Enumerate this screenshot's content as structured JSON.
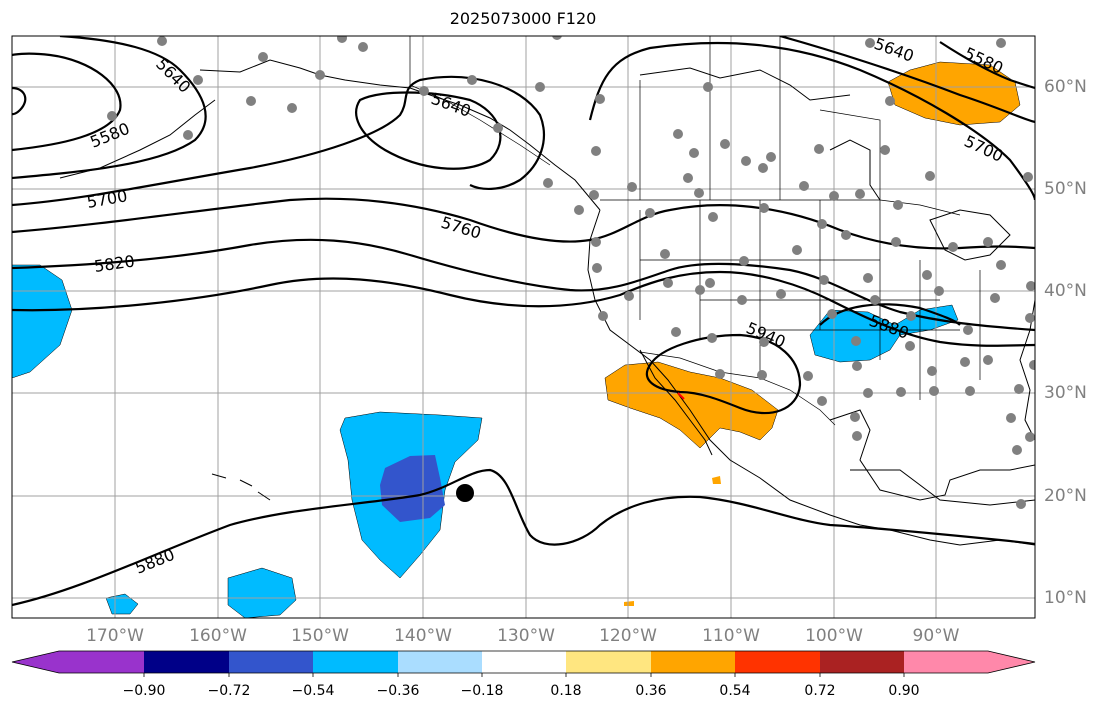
{
  "title": "2025073000 F120",
  "lon_labels": [
    "170°W",
    "160°W",
    "150°W",
    "140°W",
    "130°W",
    "120°W",
    "110°W",
    "100°W",
    "90°W"
  ],
  "lat_labels": [
    "60°N",
    "50°N",
    "40°N",
    "30°N",
    "20°N",
    "10°N"
  ],
  "contour_labels": [
    "5580",
    "5640",
    "5640",
    "5700",
    "5760",
    "5820",
    "5880",
    "5940",
    "5880",
    "5640",
    "5580",
    "5700"
  ],
  "colorbar": {
    "tick_labels": [
      "−0.90",
      "−0.72",
      "−0.54",
      "−0.36",
      "−0.18",
      "0.18",
      "0.36",
      "0.54",
      "0.72",
      "0.90"
    ],
    "colors": [
      "#9933cc",
      "#000088",
      "#3355cc",
      "#00bbff",
      "#aaddff",
      "#ffffff",
      "#ffe680",
      "#ffa500",
      "#ff3300",
      "#aa2222",
      "#ff88aa"
    ]
  }
}
